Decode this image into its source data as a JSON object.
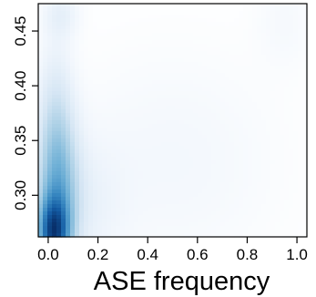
{
  "chart_data": {
    "type": "heatmap",
    "title": "",
    "xlabel": "ASE frequency",
    "ylabel": "",
    "xlim": [
      -0.04,
      1.04
    ],
    "ylim": [
      0.262,
      0.475
    ],
    "x_ticks": [
      0.0,
      0.2,
      0.4,
      0.6,
      0.8,
      1.0
    ],
    "x_tick_labels": [
      "0.0",
      "0.2",
      "0.4",
      "0.6",
      "0.8",
      "1.0"
    ],
    "y_ticks": [
      0.3,
      0.35,
      0.4,
      0.45
    ],
    "y_tick_labels": [
      "0.30",
      "0.35",
      "0.40",
      "0.45"
    ],
    "grid": false,
    "legend": "none",
    "color_scale": {
      "low": "#ffffff",
      "high": "#08306b"
    },
    "density_components": [
      {
        "x": 0.02,
        "y": 0.265,
        "sx": 0.045,
        "sy": 0.022,
        "weight": 1.0
      },
      {
        "x": 0.04,
        "y": 0.3,
        "sx": 0.06,
        "sy": 0.045,
        "weight": 0.55
      },
      {
        "x": 0.03,
        "y": 0.36,
        "sx": 0.05,
        "sy": 0.05,
        "weight": 0.28
      },
      {
        "x": 0.05,
        "y": 0.465,
        "sx": 0.05,
        "sy": 0.015,
        "weight": 0.14
      },
      {
        "x": 0.16,
        "y": 0.29,
        "sx": 0.1,
        "sy": 0.04,
        "weight": 0.1
      },
      {
        "x": 0.5,
        "y": 0.33,
        "sx": 0.3,
        "sy": 0.07,
        "weight": 0.07
      },
      {
        "x": 0.95,
        "y": 0.46,
        "sx": 0.08,
        "sy": 0.03,
        "weight": 0.05
      }
    ]
  }
}
